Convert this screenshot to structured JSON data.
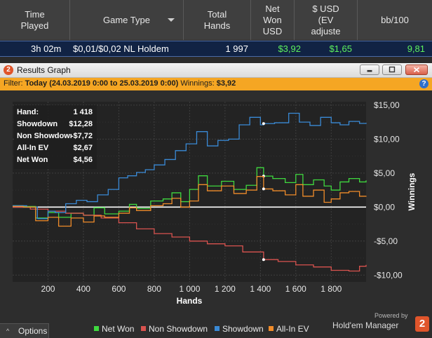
{
  "table": {
    "headers": [
      {
        "label": "Time\nPlayed"
      },
      {
        "label": "Game Type"
      },
      {
        "label": "Total\nHands"
      },
      {
        "label": "Net\nWon\nUSD"
      },
      {
        "label": "$ USD\n(EV\nadjuste"
      },
      {
        "label": "bb/100"
      }
    ],
    "row": {
      "time_played": "3h 02m",
      "game_type": "$0,01/$0,02 NL Holdem",
      "total_hands": "1 997",
      "net_won": "$3,92",
      "ev_adjusted": "$1,65",
      "bb100": "9,81"
    }
  },
  "window": {
    "title": "Results Graph",
    "app_icon_text": "2",
    "buttons": [
      "minimize-icon",
      "restore-icon",
      "close-icon"
    ]
  },
  "filter": {
    "prefix": "Filter:",
    "value": "Today (24.03.2019 0:00 to 25.03.2019 0:00)",
    "winnings_label": "Winnings:",
    "winnings_value": "$3,92",
    "help_icon": "?"
  },
  "stats_box": [
    {
      "label": "Hand:",
      "value": "1 418"
    },
    {
      "label": "Showdown",
      "value": "$12,28"
    },
    {
      "label": "Non Showdown",
      "value": "-$7,72"
    },
    {
      "label": "All-In EV",
      "value": "$2,67"
    },
    {
      "label": "Net Won",
      "value": "$4,56"
    }
  ],
  "colors": {
    "net_won": "#3fd93f",
    "non_showdown": "#d9534f",
    "showdown": "#3a8ad6",
    "allin_ev": "#f08c2a",
    "accent_orange": "#f5a623"
  },
  "chart_data": {
    "type": "line",
    "xlabel": "Hands",
    "ylabel": "Winnings",
    "xlim": [
      0,
      1997
    ],
    "ylim": [
      -11,
      15.5
    ],
    "x_ticks": [
      {
        "value": 200,
        "label": "200"
      },
      {
        "value": 400,
        "label": "400"
      },
      {
        "value": 600,
        "label": "600"
      },
      {
        "value": 800,
        "label": "800"
      },
      {
        "value": 1000,
        "label": "1 000"
      },
      {
        "value": 1200,
        "label": "1 200"
      },
      {
        "value": 1400,
        "label": "1 400"
      },
      {
        "value": 1600,
        "label": "1 600"
      },
      {
        "value": 1800,
        "label": "1 800"
      }
    ],
    "y_ticks": [
      {
        "value": 15,
        "label": "$15,00"
      },
      {
        "value": 10,
        "label": "$10,00"
      },
      {
        "value": 5,
        "label": "$5,00"
      },
      {
        "value": 0,
        "label": "$0,00"
      },
      {
        "value": -5,
        "label": "-$5,00"
      },
      {
        "value": -10,
        "label": "-$10,00"
      }
    ],
    "grid": true,
    "marker_x": 1418,
    "series": [
      {
        "name": "Net Won",
        "color": "#3fd93f",
        "x": [
          0,
          60,
          130,
          200,
          260,
          330,
          400,
          460,
          520,
          600,
          660,
          700,
          780,
          850,
          900,
          950,
          1000,
          1050,
          1100,
          1180,
          1250,
          1320,
          1380,
          1418,
          1470,
          1540,
          1600,
          1640,
          1700,
          1760,
          1800,
          1850,
          1900,
          1960,
          1997
        ],
        "y": [
          0.2,
          0.1,
          -1.6,
          -0.8,
          -1.5,
          -0.9,
          -1.2,
          -0.1,
          -1.0,
          -0.6,
          0.4,
          -0.2,
          0.9,
          1.2,
          2.1,
          0.8,
          2.6,
          4.6,
          3.1,
          3.8,
          2.6,
          3.2,
          5.8,
          4.56,
          4.2,
          3.6,
          4.8,
          3.3,
          4.0,
          3.1,
          2.5,
          3.7,
          4.2,
          3.7,
          3.92
        ]
      },
      {
        "name": "Non Showdown",
        "color": "#d9534f",
        "x": [
          0,
          100,
          200,
          300,
          400,
          500,
          600,
          700,
          800,
          900,
          1000,
          1100,
          1200,
          1300,
          1418,
          1500,
          1600,
          1700,
          1800,
          1900,
          1960,
          1997
        ],
        "y": [
          0,
          -0.3,
          -0.6,
          -0.9,
          -1.2,
          -1.6,
          -2.3,
          -3.2,
          -3.9,
          -4.4,
          -5.0,
          -5.4,
          -5.7,
          -6.6,
          -7.72,
          -8.0,
          -8.5,
          -8.8,
          -9.3,
          -9.4,
          -8.7,
          -8.5
        ]
      },
      {
        "name": "Showdown",
        "color": "#3a8ad6",
        "x": [
          0,
          80,
          140,
          200,
          240,
          300,
          360,
          420,
          480,
          540,
          600,
          650,
          700,
          750,
          800,
          860,
          920,
          980,
          1040,
          1100,
          1160,
          1220,
          1280,
          1340,
          1400,
          1418,
          1480,
          1560,
          1620,
          1680,
          1740,
          1800,
          1850,
          1900,
          1960,
          1997
        ],
        "y": [
          0.2,
          0,
          -1.7,
          -0.6,
          -0.8,
          0.5,
          1.0,
          0.8,
          1.8,
          2.6,
          4.3,
          4.6,
          5.1,
          5.5,
          6.2,
          7.0,
          8.3,
          9.3,
          11.1,
          9.0,
          9.8,
          10.0,
          12.1,
          13.2,
          12.1,
          12.28,
          12.4,
          13.8,
          12.5,
          12.0,
          13.2,
          12.4,
          12.1,
          12.6,
          12.3,
          12.4
        ]
      },
      {
        "name": "All-In EV",
        "color": "#f08c2a",
        "x": [
          0,
          60,
          130,
          200,
          260,
          330,
          400,
          460,
          520,
          600,
          660,
          700,
          780,
          850,
          900,
          950,
          1000,
          1050,
          1100,
          1180,
          1250,
          1320,
          1380,
          1418,
          1470,
          1540,
          1600,
          1640,
          1700,
          1760,
          1800,
          1850,
          1900,
          1960,
          1997
        ],
        "y": [
          0.1,
          0.0,
          -2.0,
          -1.5,
          -2.8,
          -1.6,
          -2.2,
          -1.3,
          -1.5,
          -0.9,
          -0.1,
          -0.5,
          0.2,
          0.5,
          1.3,
          0.0,
          0.9,
          3.3,
          2.4,
          3.1,
          2.0,
          2.5,
          4.5,
          2.67,
          2.4,
          1.8,
          3.3,
          1.6,
          2.5,
          0.7,
          1.2,
          2.1,
          2.3,
          1.6,
          1.65
        ]
      }
    ]
  },
  "legend": [
    {
      "name": "Net Won",
      "color": "#3fd93f"
    },
    {
      "name": "Non Showdown",
      "color": "#d9534f"
    },
    {
      "name": "Showdown",
      "color": "#3a8ad6"
    },
    {
      "name": "All-In EV",
      "color": "#f08c2a"
    }
  ],
  "footer": {
    "options_label": "Options",
    "options_caret": "^",
    "powered_by": "Powered by",
    "brand": "Hold'em Manager",
    "brand_logo": "2"
  }
}
